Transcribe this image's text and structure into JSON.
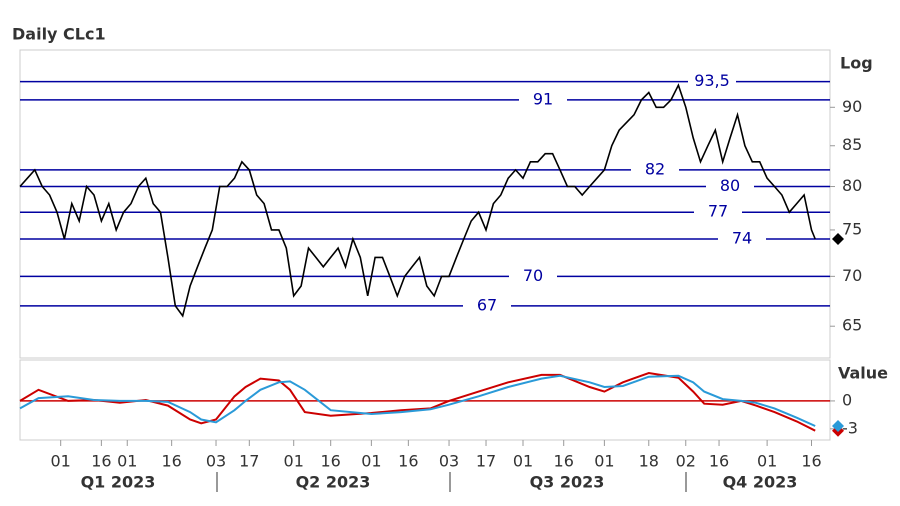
{
  "chart_data": [
    {
      "type": "line",
      "title": "Daily CLc1",
      "scale_label": "Log",
      "log_scale": true,
      "ylim": [
        62,
        98
      ],
      "yticks": [
        65,
        70,
        75,
        80,
        85,
        90
      ],
      "xlim": [
        0,
        219
      ],
      "xticks": [
        {
          "value": 11,
          "label": "01"
        },
        {
          "value": 22,
          "label": "16"
        },
        {
          "value": 29,
          "label": "01"
        },
        {
          "value": 41,
          "label": "16"
        },
        {
          "value": 53,
          "label": "03"
        },
        {
          "value": 62,
          "label": "17"
        },
        {
          "value": 74,
          "label": "01"
        },
        {
          "value": 84,
          "label": "16"
        },
        {
          "value": 95,
          "label": "01"
        },
        {
          "value": 105,
          "label": "16"
        },
        {
          "value": 116,
          "label": "03"
        },
        {
          "value": 126,
          "label": "17"
        },
        {
          "value": 136,
          "label": "01"
        },
        {
          "value": 147,
          "label": "16"
        },
        {
          "value": 158,
          "label": "01"
        },
        {
          "value": 170,
          "label": "18"
        },
        {
          "value": 180,
          "label": "02"
        },
        {
          "value": 189,
          "label": "16"
        },
        {
          "value": 202,
          "label": "01"
        },
        {
          "value": 214,
          "label": "16"
        }
      ],
      "quarters": [
        "Q1 2023",
        "Q2 2023",
        "Q3 2023",
        "Q4 2023"
      ],
      "level_color": "#0000a0",
      "levels": [
        {
          "value": 93.5,
          "label": "93,5"
        },
        91,
        82,
        80,
        77,
        74,
        70,
        67
      ],
      "series": [
        {
          "color": "#000000",
          "x": [
            0,
            2,
            4,
            6,
            8,
            10,
            12,
            14,
            16,
            18,
            20,
            22,
            24,
            26,
            28,
            30,
            32,
            34,
            36,
            38,
            40,
            42,
            44,
            46,
            48,
            50,
            52,
            54,
            56,
            58,
            60,
            62,
            64,
            66,
            68,
            70,
            72,
            74,
            76,
            78,
            80,
            82,
            84,
            86,
            88,
            90,
            92,
            94,
            96,
            98,
            100,
            102,
            104,
            106,
            108,
            110,
            112,
            114,
            116,
            118,
            120,
            122,
            124,
            126,
            128,
            130,
            132,
            134,
            136,
            138,
            140,
            142,
            144,
            146,
            148,
            150,
            152,
            154,
            156,
            158,
            160,
            162,
            164,
            166,
            168,
            170,
            172,
            174,
            176,
            178,
            180,
            182,
            184,
            186,
            188,
            190,
            192,
            194,
            196,
            198,
            200,
            202,
            204,
            206,
            208,
            210,
            212,
            214,
            215
          ],
          "values": [
            80,
            81,
            82,
            80,
            79,
            77,
            74,
            78,
            76,
            80,
            79,
            76,
            78,
            75,
            77,
            78,
            80,
            81,
            78,
            77,
            72,
            67,
            66,
            69,
            71,
            73,
            75,
            80,
            80,
            81,
            83,
            82,
            79,
            78,
            75,
            75,
            73,
            68,
            69,
            73,
            72,
            71,
            72,
            73,
            71,
            74,
            72,
            68,
            72,
            72,
            70,
            68,
            70,
            71,
            72,
            69,
            68,
            70,
            70,
            72,
            74,
            76,
            77,
            75,
            78,
            79,
            81,
            82,
            81,
            83,
            83,
            84,
            84,
            82,
            80,
            80,
            79,
            80,
            81,
            82,
            85,
            87,
            88,
            89,
            91,
            92,
            90,
            90,
            91,
            93,
            90,
            86,
            83,
            85,
            87,
            83,
            86,
            89,
            85,
            83,
            83,
            81,
            80,
            79,
            77,
            78,
            79,
            75,
            74
          ]
        }
      ]
    },
    {
      "type": "line",
      "scale_label": "Value",
      "ylim": [
        -4.2,
        4.4
      ],
      "yticks": [
        0,
        -3
      ],
      "xlim": [
        0,
        219
      ],
      "zero_line_color": "#cc0000",
      "series": [
        {
          "color": "#cc0000",
          "x": [
            0,
            5,
            13,
            20,
            27,
            34,
            40,
            46,
            49,
            53,
            58,
            61,
            65,
            70,
            73,
            77,
            84,
            95,
            103,
            111,
            116,
            124,
            132,
            141,
            146,
            154,
            158,
            163,
            170,
            178,
            182,
            185,
            190,
            195,
            199,
            204,
            210,
            215
          ],
          "values": [
            0,
            1.2,
            0,
            0.1,
            -0.2,
            0.1,
            -0.5,
            -2,
            -2.4,
            -2,
            0.5,
            1.5,
            2.4,
            2.2,
            1.2,
            -1.2,
            -1.6,
            -1.3,
            -1,
            -0.8,
            0,
            1,
            2,
            2.8,
            2.8,
            1.5,
            1,
            2,
            3,
            2.5,
            1,
            -0.3,
            -0.4,
            0,
            -0.5,
            -1.2,
            -2.2,
            -3.2
          ]
        },
        {
          "color": "#2a9ad8",
          "x": [
            0,
            5,
            13,
            20,
            27,
            34,
            40,
            46,
            49,
            53,
            58,
            61,
            65,
            70,
            73,
            77,
            84,
            95,
            103,
            111,
            116,
            124,
            132,
            141,
            146,
            154,
            158,
            163,
            170,
            178,
            182,
            185,
            190,
            195,
            199,
            204,
            210,
            215
          ],
          "values": [
            -0.8,
            0.3,
            0.5,
            0.1,
            0,
            0,
            -0.1,
            -1.2,
            -2,
            -2.3,
            -1,
            0,
            1.2,
            2,
            2.1,
            1.2,
            -1,
            -1.4,
            -1.2,
            -0.9,
            -0.4,
            0.5,
            1.5,
            2.4,
            2.7,
            2,
            1.5,
            1.6,
            2.6,
            2.7,
            2,
            1,
            0.2,
            0,
            -0.2,
            -0.8,
            -1.8,
            -2.7
          ]
        }
      ]
    }
  ]
}
